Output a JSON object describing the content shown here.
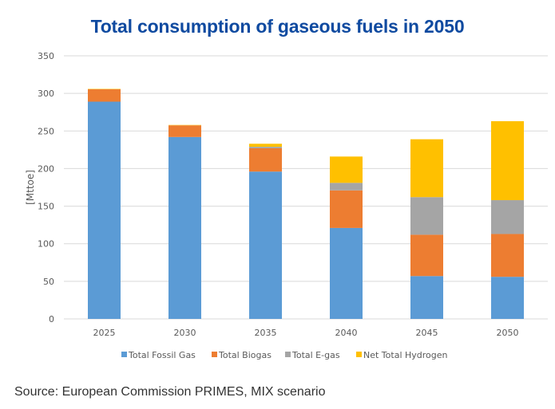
{
  "chart_data": {
    "type": "bar",
    "stacked": true,
    "title": "Total consumption of gaseous fuels in 2050",
    "xlabel": "",
    "ylabel": "[Mttoe]",
    "ylim": [
      0,
      350
    ],
    "yticks": [
      0,
      50,
      100,
      150,
      200,
      250,
      300,
      350
    ],
    "grid": true,
    "legend_position": "bottom",
    "categories": [
      "2025",
      "2030",
      "2035",
      "2040",
      "2045",
      "2050"
    ],
    "series": [
      {
        "name": "Total Fossil Gas",
        "color": "#5B9BD5",
        "values": [
          289,
          242,
          196,
          121,
          57,
          56
        ]
      },
      {
        "name": "Total Biogas",
        "color": "#ED7D31",
        "values": [
          16.5,
          15.5,
          31,
          50,
          55,
          57
        ]
      },
      {
        "name": "Total E-gas",
        "color": "#A5A5A5",
        "values": [
          0,
          0,
          2,
          10,
          50,
          45
        ]
      },
      {
        "name": "Net Total Hydrogen",
        "color": "#FFC000",
        "values": [
          0.5,
          0.5,
          4,
          35,
          77,
          105
        ]
      }
    ]
  },
  "source": "Source: European Commission PRIMES, MIX scenario"
}
